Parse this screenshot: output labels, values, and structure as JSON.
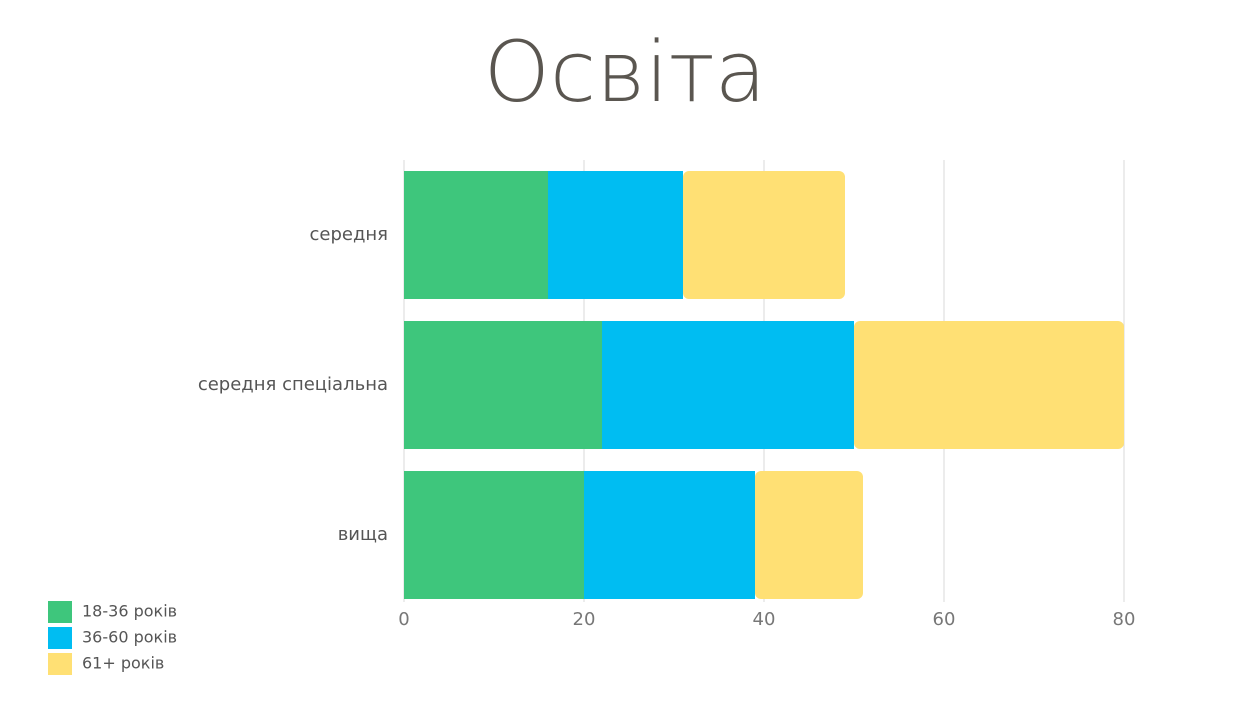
{
  "chart_data": {
    "type": "bar",
    "orientation": "horizontal",
    "stacked": true,
    "title": "Освіта",
    "categories": [
      "середня",
      "середня спеціальна",
      "вища"
    ],
    "series": [
      {
        "name": "18-36 років",
        "color": "#3ec67c",
        "values": [
          16,
          22,
          20
        ]
      },
      {
        "name": "36-60 років",
        "color": "#00bdf2",
        "values": [
          15,
          28,
          19
        ]
      },
      {
        "name": "61+ років",
        "color": "#ffe074",
        "values": [
          18,
          30,
          12
        ]
      }
    ],
    "xlim": [
      0,
      80
    ],
    "xticks": [
      0,
      20,
      40,
      60,
      80
    ],
    "grid": true,
    "legend": "bottom-left"
  }
}
